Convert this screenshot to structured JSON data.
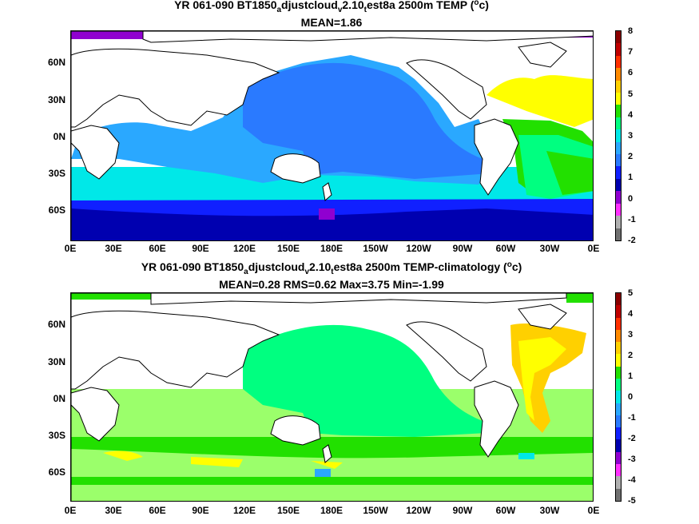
{
  "panel1": {
    "title_parts": [
      "YR 061-090 BT1850",
      "a",
      "djustcloud",
      "v",
      "2.10",
      "t",
      "est8a 2500m TEMP (",
      "o",
      "c)"
    ],
    "stats": "MEAN=1.86",
    "colorbar_labels": [
      "8",
      "7",
      "6",
      "5",
      "4",
      "3",
      "2",
      "1",
      "0",
      "-1",
      "-2"
    ],
    "colorbar_colors": [
      "#8b0000",
      "#c00000",
      "#ff3000",
      "#ff8a00",
      "#ffd000",
      "#ffff00",
      "#22e000",
      "#00ff80",
      "#00e8e8",
      "#2aa8ff",
      "#2a7aff",
      "#1020ff",
      "#0000b0",
      "#9000d0",
      "#ff30ff",
      "#b0b0b0",
      "#707070"
    ]
  },
  "panel2": {
    "title_parts": [
      "YR 061-090 BT1850",
      "a",
      "djustcloud",
      "v",
      "2.10",
      "t",
      "est8a 2500m TEMP-climatology (",
      "o",
      "c)"
    ],
    "stats": "MEAN=0.28   RMS=0.62   Max=3.75   Min=-1.99",
    "colorbar_labels": [
      "5",
      "4",
      "3",
      "2",
      "1",
      "0",
      "-1",
      "-2",
      "-3",
      "-4",
      "-5"
    ],
    "colorbar_colors": [
      "#8b0000",
      "#c00000",
      "#ff3000",
      "#ff8a00",
      "#ffd000",
      "#ffff00",
      "#22e000",
      "#00ff80",
      "#00e8e8",
      "#2aa8ff",
      "#2a7aff",
      "#1020ff",
      "#0000b0",
      "#9000d0",
      "#ff30ff",
      "#b0b0b0",
      "#707070"
    ]
  },
  "axes": {
    "x_ticks": [
      "0E",
      "30E",
      "60E",
      "90E",
      "120E",
      "150E",
      "180E",
      "150W",
      "120W",
      "90W",
      "60W",
      "30W",
      "0E"
    ],
    "y_ticks": [
      "60N",
      "30N",
      "0N",
      "30S",
      "60S"
    ]
  }
}
